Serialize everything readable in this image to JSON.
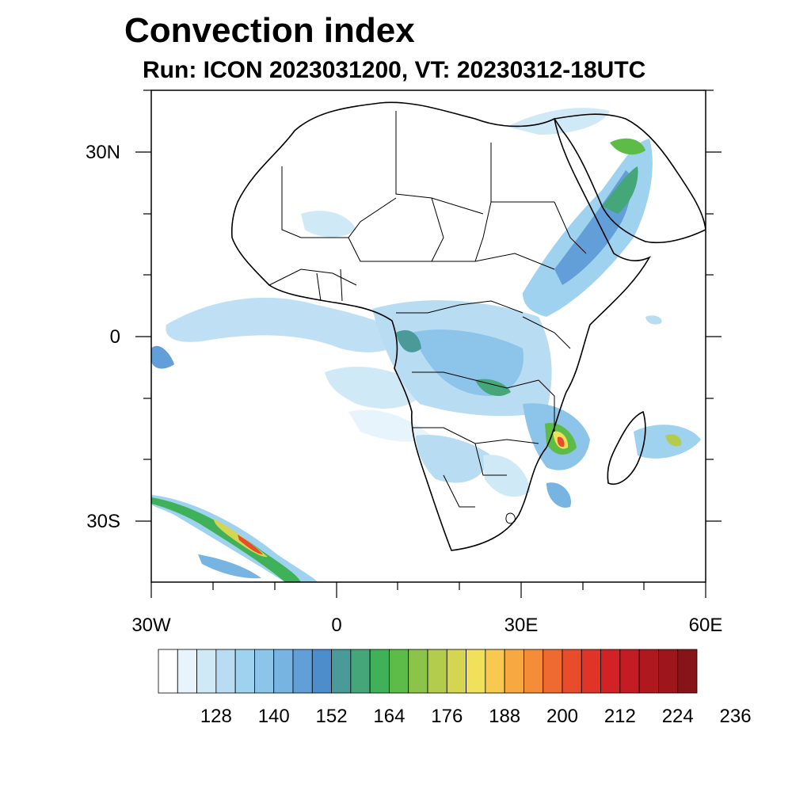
{
  "header": {
    "title": "Convection index",
    "subtitle": "Run: ICON 2023031200,  VT: 20230312-18UTC"
  },
  "map": {
    "region": "Africa",
    "lon_range": [
      -30,
      60
    ],
    "lat_range": [
      -40,
      40
    ],
    "lat_labels": [
      "30N",
      "0",
      "30S"
    ],
    "lon_labels": [
      "30W",
      "0",
      "30E",
      "60E"
    ],
    "feature_names": [
      "coastline",
      "country-borders",
      "convection-field"
    ]
  },
  "colorbar": {
    "labels": [
      "128",
      "140",
      "152",
      "164",
      "176",
      "188",
      "200",
      "212",
      "224",
      "236"
    ],
    "colors": [
      "#ffffff",
      "#e8f4fb",
      "#d0e9f7",
      "#b8ddf3",
      "#9fd2ef",
      "#8cc4ea",
      "#78b4e2",
      "#629fd8",
      "#4d8dcc",
      "#4a9a9a",
      "#45a67a",
      "#3fb158",
      "#5dbb48",
      "#8cc44a",
      "#b3cc4e",
      "#d6d552",
      "#f0e05a",
      "#f8c850",
      "#f7a840",
      "#f48c38",
      "#ef6a30",
      "#e84c2a",
      "#e03428",
      "#d22226",
      "#c41c24",
      "#b01820",
      "#9c161c",
      "#861418"
    ]
  }
}
